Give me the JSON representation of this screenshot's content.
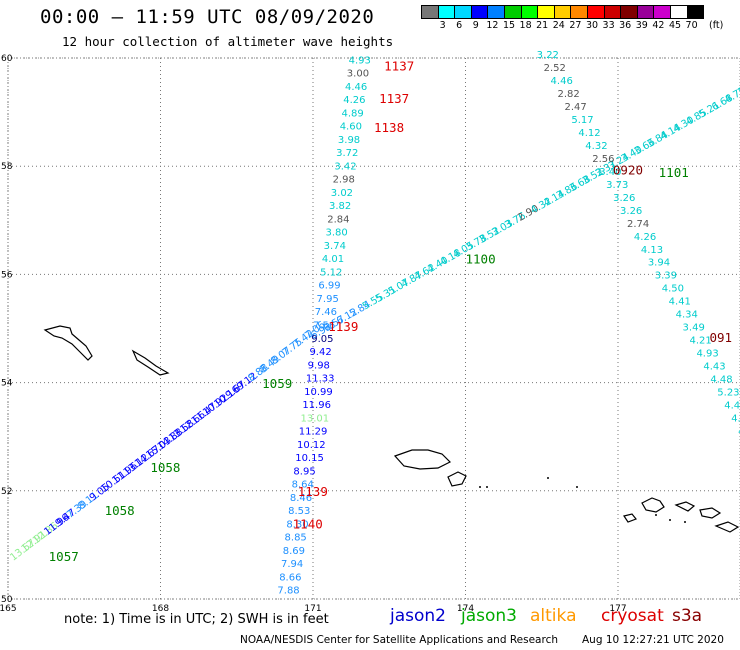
{
  "header": {
    "title": "00:00 – 11:59 UTC 08/09/2020",
    "subtitle": "12 hour collection of altimeter wave heights"
  },
  "colorbar": {
    "colors": [
      "#777777",
      "#00ffff",
      "#00d8ff",
      "#0000ff",
      "#0080ff",
      "#00cc00",
      "#00ff00",
      "#ffff00",
      "#ffcc00",
      "#ff8800",
      "#ff0000",
      "#cc0000",
      "#800000",
      "#990099",
      "#cc00cc",
      "#ffffff",
      "#000000"
    ],
    "ticks": [
      "3",
      "6",
      "9",
      "12",
      "15",
      "18",
      "21",
      "24",
      "27",
      "30",
      "33",
      "36",
      "39",
      "42",
      "45",
      "70"
    ],
    "unit": "(ft)"
  },
  "map": {
    "lon_ticks": [
      "165",
      "168",
      "171",
      "174",
      "177"
    ],
    "lat_ticks": [
      "60",
      "58",
      "56",
      "54",
      "52",
      "50"
    ],
    "lon_range": [
      165,
      179.4
    ],
    "lat_range": [
      50,
      60
    ],
    "gridline_style": "dotted",
    "coastline_color": "#000000"
  },
  "tracks": [
    {
      "id": "jason2-inbound",
      "satellite": "jason2",
      "start": [
        165.1,
        50.7
      ],
      "end": [
        170.9,
        54.8
      ],
      "points": [
        {
          "v": "13.57",
          "c": "#90ee90"
        },
        {
          "v": "12.91",
          "c": "#90ee90"
        },
        {
          "v": "12.86",
          "c": "#90ee90"
        },
        {
          "v": "11.96",
          "c": "#0000ff"
        },
        {
          "v": "9.47",
          "c": "#0000ff"
        },
        {
          "v": "7.39",
          "c": "#1e90ff"
        },
        {
          "v": "8.11",
          "c": "#1e90ff"
        },
        {
          "v": "9.05",
          "c": "#0000ff"
        },
        {
          "v": "10.51",
          "c": "#0000ff"
        },
        {
          "v": "11.96",
          "c": "#0000ff"
        },
        {
          "v": "13.12",
          "c": "#0000ff"
        },
        {
          "v": "14.67",
          "c": "#0000ff"
        },
        {
          "v": "15.03",
          "c": "#0000ff"
        },
        {
          "v": "14.88",
          "c": "#0000ff"
        },
        {
          "v": "13.58",
          "c": "#0000ff"
        },
        {
          "v": "12.66",
          "c": "#0000ff"
        },
        {
          "v": "11.47",
          "c": "#0000ff"
        },
        {
          "v": "10.92",
          "c": "#0000ff"
        },
        {
          "v": "10.16",
          "c": "#0000ff"
        },
        {
          "v": "9.67",
          "c": "#0000ff"
        },
        {
          "v": "9.12",
          "c": "#0000ff"
        },
        {
          "v": "8.88",
          "c": "#1e90ff"
        },
        {
          "v": "8.49",
          "c": "#1e90ff"
        },
        {
          "v": "8.07",
          "c": "#1e90ff"
        },
        {
          "v": "7.75",
          "c": "#1e90ff"
        },
        {
          "v": "7.42",
          "c": "#1e90ff"
        },
        {
          "v": "7.06",
          "c": "#1e90ff"
        }
      ]
    },
    {
      "id": "jason3-cross",
      "satellite": "jason3",
      "start": [
        171.0,
        54.8
      ],
      "end": [
        179.4,
        59.3
      ],
      "points": [
        {
          "v": "6.92",
          "c": "#1e90ff"
        },
        {
          "v": "6.57",
          "c": "#1e90ff"
        },
        {
          "v": "6.12",
          "c": "#1e90ff"
        },
        {
          "v": "5.84",
          "c": "#1e90ff"
        },
        {
          "v": "5.55",
          "c": "#00cccc"
        },
        {
          "v": "5.31",
          "c": "#00cccc"
        },
        {
          "v": "5.07",
          "c": "#00cccc"
        },
        {
          "v": "4.87",
          "c": "#00cccc"
        },
        {
          "v": "4.62",
          "c": "#00cccc"
        },
        {
          "v": "4.40",
          "c": "#00cccc"
        },
        {
          "v": "4.18",
          "c": "#00cccc"
        },
        {
          "v": "4.05",
          "c": "#00cccc"
        },
        {
          "v": "3.78",
          "c": "#00cccc"
        },
        {
          "v": "3.52",
          "c": "#00cccc"
        },
        {
          "v": "3.03",
          "c": "#00cccc"
        },
        {
          "v": "3.76",
          "c": "#00cccc"
        },
        {
          "v": "2.90",
          "c": "#555555"
        },
        {
          "v": "4.32",
          "c": "#00cccc"
        },
        {
          "v": "4.14",
          "c": "#00cccc"
        },
        {
          "v": "3.86",
          "c": "#00cccc"
        },
        {
          "v": "3.68",
          "c": "#00cccc"
        },
        {
          "v": "3.52",
          "c": "#00cccc"
        },
        {
          "v": "3.37",
          "c": "#00cccc"
        },
        {
          "v": "3.24",
          "c": "#00cccc"
        },
        {
          "v": "3.40",
          "c": "#00cccc"
        },
        {
          "v": "3.66",
          "c": "#00cccc"
        },
        {
          "v": "3.84",
          "c": "#00cccc"
        },
        {
          "v": "4.14",
          "c": "#00cccc"
        },
        {
          "v": "4.30",
          "c": "#00cccc"
        },
        {
          "v": "4.85",
          "c": "#00cccc"
        },
        {
          "v": "5.21",
          "c": "#00cccc"
        },
        {
          "v": "6.68",
          "c": "#00cccc"
        },
        {
          "v": "4.78",
          "c": "#00cccc"
        },
        {
          "v": "3.95",
          "c": "#00cccc"
        }
      ]
    },
    {
      "id": "cryosat-north-south",
      "satellite": "cryosat",
      "start": [
        171.7,
        59.9
      ],
      "end": [
        170.3,
        50.1
      ],
      "points": [
        {
          "v": "4.93",
          "c": "#00cccc"
        },
        {
          "v": "3.00",
          "c": "#555555"
        },
        {
          "v": "4.46",
          "c": "#00cccc"
        },
        {
          "v": "4.26",
          "c": "#00cccc"
        },
        {
          "v": "4.89",
          "c": "#00cccc"
        },
        {
          "v": "4.60",
          "c": "#00cccc"
        },
        {
          "v": "3.98",
          "c": "#00cccc"
        },
        {
          "v": "3.72",
          "c": "#00cccc"
        },
        {
          "v": "3.42",
          "c": "#00cccc"
        },
        {
          "v": "2.98",
          "c": "#555555"
        },
        {
          "v": "3.02",
          "c": "#00cccc"
        },
        {
          "v": "3.82",
          "c": "#00cccc"
        },
        {
          "v": "2.84",
          "c": "#555555"
        },
        {
          "v": "3.80",
          "c": "#00cccc"
        },
        {
          "v": "3.74",
          "c": "#00cccc"
        },
        {
          "v": "4.01",
          "c": "#00cccc"
        },
        {
          "v": "5.12",
          "c": "#00cccc"
        },
        {
          "v": "6.99",
          "c": "#1e90ff"
        },
        {
          "v": "7.95",
          "c": "#1e90ff"
        },
        {
          "v": "7.46",
          "c": "#1e90ff"
        },
        {
          "v": "7.56",
          "c": "#1e90ff"
        },
        {
          "v": "9.05",
          "c": "#000080"
        },
        {
          "v": "9.42",
          "c": "#0000ff"
        },
        {
          "v": "9.98",
          "c": "#0000ff"
        },
        {
          "v": "11.33",
          "c": "#0000ff"
        },
        {
          "v": "10.99",
          "c": "#0000ff"
        },
        {
          "v": "11.96",
          "c": "#0000ff"
        },
        {
          "v": "13.01",
          "c": "#90ee90"
        },
        {
          "v": "11.29",
          "c": "#0000ff"
        },
        {
          "v": "10.12",
          "c": "#0000ff"
        },
        {
          "v": "10.15",
          "c": "#0000ff"
        },
        {
          "v": "8.95",
          "c": "#0000ff"
        },
        {
          "v": "8.64",
          "c": "#1e90ff"
        },
        {
          "v": "8.46",
          "c": "#1e90ff"
        },
        {
          "v": "8.53",
          "c": "#1e90ff"
        },
        {
          "v": "8.30",
          "c": "#1e90ff"
        },
        {
          "v": "8.85",
          "c": "#1e90ff"
        },
        {
          "v": "8.69",
          "c": "#1e90ff"
        },
        {
          "v": "7.94",
          "c": "#1e90ff"
        },
        {
          "v": "8.66",
          "c": "#1e90ff"
        },
        {
          "v": "7.88",
          "c": "#1e90ff"
        }
      ]
    },
    {
      "id": "s3a-descending",
      "satellite": "s3a",
      "start": [
        175.4,
        60.0
      ],
      "end": [
        179.5,
        52.8
      ],
      "points": [
        {
          "v": "3.22",
          "c": "#00cccc"
        },
        {
          "v": "2.52",
          "c": "#555555"
        },
        {
          "v": "4.46",
          "c": "#00cccc"
        },
        {
          "v": "2.82",
          "c": "#555555"
        },
        {
          "v": "2.47",
          "c": "#555555"
        },
        {
          "v": "5.17",
          "c": "#00cccc"
        },
        {
          "v": "4.12",
          "c": "#00cccc"
        },
        {
          "v": "4.32",
          "c": "#00cccc"
        },
        {
          "v": "2.56",
          "c": "#555555"
        },
        {
          "v": "3.40",
          "c": "#00cccc"
        },
        {
          "v": "3.73",
          "c": "#00cccc"
        },
        {
          "v": "3.26",
          "c": "#00cccc"
        },
        {
          "v": "3.26",
          "c": "#00cccc"
        },
        {
          "v": "2.74",
          "c": "#555555"
        },
        {
          "v": "4.26",
          "c": "#00cccc"
        },
        {
          "v": "4.13",
          "c": "#00cccc"
        },
        {
          "v": "3.94",
          "c": "#00cccc"
        },
        {
          "v": "3.39",
          "c": "#00cccc"
        },
        {
          "v": "4.50",
          "c": "#00cccc"
        },
        {
          "v": "4.41",
          "c": "#00cccc"
        },
        {
          "v": "4.34",
          "c": "#00cccc"
        },
        {
          "v": "3.49",
          "c": "#00cccc"
        },
        {
          "v": "4.21",
          "c": "#00cccc"
        },
        {
          "v": "4.93",
          "c": "#00cccc"
        },
        {
          "v": "4.43",
          "c": "#00cccc"
        },
        {
          "v": "4.48",
          "c": "#00cccc"
        },
        {
          "v": "5.23",
          "c": "#00cccc"
        },
        {
          "v": "4.42",
          "c": "#00cccc"
        },
        {
          "v": "4.08",
          "c": "#00cccc"
        },
        {
          "v": "4.6",
          "c": "#00cccc"
        },
        {
          "v": "4.",
          "c": "#00cccc"
        }
      ]
    }
  ],
  "time_labels": [
    {
      "text": "1137",
      "c": "#dd0000",
      "lon": 172.4,
      "lat": 59.77
    },
    {
      "text": "1137",
      "c": "#dd0000",
      "lon": 172.3,
      "lat": 59.17
    },
    {
      "text": "1138",
      "c": "#dd0000",
      "lon": 172.2,
      "lat": 58.63
    },
    {
      "text": "0920",
      "c": "#800000",
      "lon": 176.9,
      "lat": 57.85
    },
    {
      "text": "1101",
      "c": "#008000",
      "lon": 177.8,
      "lat": 57.8
    },
    {
      "text": "1100",
      "c": "#008000",
      "lon": 174.0,
      "lat": 56.2
    },
    {
      "text": "1139",
      "c": "#dd0000",
      "lon": 171.3,
      "lat": 54.95
    },
    {
      "text": "091",
      "c": "#800000",
      "lon": 178.8,
      "lat": 54.75
    },
    {
      "text": "1059",
      "c": "#008000",
      "lon": 170.0,
      "lat": 53.9
    },
    {
      "text": "1058",
      "c": "#008000",
      "lon": 167.8,
      "lat": 52.35
    },
    {
      "text": "1058",
      "c": "#008000",
      "lon": 166.9,
      "lat": 51.55
    },
    {
      "text": "1139",
      "c": "#dd0000",
      "lon": 170.7,
      "lat": 51.9
    },
    {
      "text": "1140",
      "c": "#dd0000",
      "lon": 170.6,
      "lat": 51.3
    },
    {
      "text": "1057",
      "c": "#008000",
      "lon": 165.8,
      "lat": 50.7
    }
  ],
  "footer": {
    "note": "note: 1) Time is in UTC; 2) SWH is in feet",
    "legend": [
      {
        "label": "jason2",
        "color": "#0000cc"
      },
      {
        "label": "jason3",
        "color": "#00aa00"
      },
      {
        "label": "altika",
        "color": "#ff9900"
      },
      {
        "label": "cryosat",
        "color": "#dd0000"
      },
      {
        "label": "s3a",
        "color": "#880000"
      }
    ],
    "credit": "NOAA/NESDIS Center for Satellite Applications and Research",
    "generated": "Aug 10 12:27:21 UTC 2020"
  }
}
